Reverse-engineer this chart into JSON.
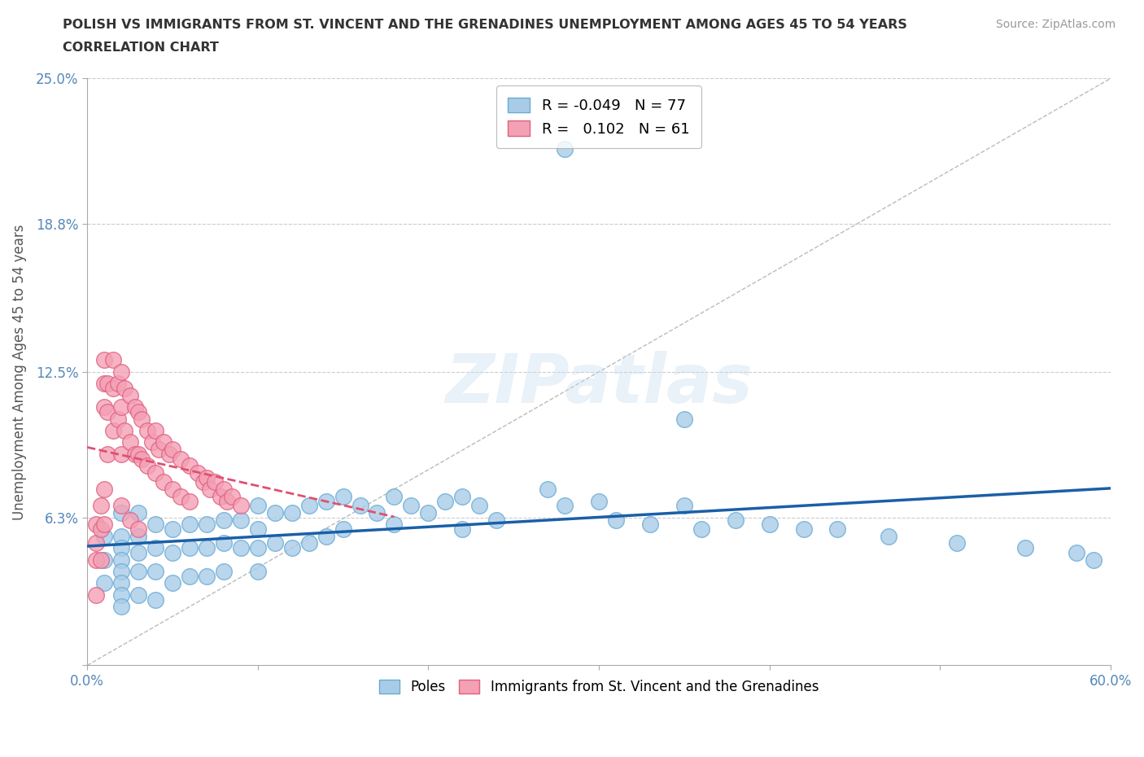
{
  "title_line1": "POLISH VS IMMIGRANTS FROM ST. VINCENT AND THE GRENADINES UNEMPLOYMENT AMONG AGES 45 TO 54 YEARS",
  "title_line2": "CORRELATION CHART",
  "source_text": "Source: ZipAtlas.com",
  "ylabel": "Unemployment Among Ages 45 to 54 years",
  "xlim": [
    0.0,
    0.6
  ],
  "ylim": [
    0.0,
    0.25
  ],
  "background_color": "#ffffff",
  "watermark_text": "ZIPatlas",
  "poles_color": "#a8cce8",
  "poles_edge_color": "#6aaad4",
  "svg_color": "#f4a0b5",
  "svg_edge_color": "#e06080",
  "poles_R": -0.049,
  "poles_N": 77,
  "svg_R": 0.102,
  "svg_N": 61,
  "legend_label_poles": "Poles",
  "legend_label_svg": "Immigrants from St. Vincent and the Grenadines",
  "ref_line_color": "#bbbbbb",
  "poles_trend_color": "#1a5fa8",
  "svg_trend_color": "#e05070",
  "grid_color": "#cccccc",
  "poles_x": [
    0.01,
    0.01,
    0.01,
    0.02,
    0.02,
    0.02,
    0.02,
    0.02,
    0.02,
    0.02,
    0.02,
    0.03,
    0.03,
    0.03,
    0.03,
    0.03,
    0.04,
    0.04,
    0.04,
    0.04,
    0.05,
    0.05,
    0.05,
    0.06,
    0.06,
    0.06,
    0.07,
    0.07,
    0.07,
    0.08,
    0.08,
    0.08,
    0.09,
    0.09,
    0.1,
    0.1,
    0.1,
    0.1,
    0.11,
    0.11,
    0.12,
    0.12,
    0.13,
    0.13,
    0.14,
    0.14,
    0.15,
    0.15,
    0.16,
    0.17,
    0.18,
    0.18,
    0.19,
    0.2,
    0.21,
    0.22,
    0.22,
    0.23,
    0.24,
    0.27,
    0.28,
    0.3,
    0.31,
    0.33,
    0.35,
    0.36,
    0.38,
    0.4,
    0.42,
    0.44,
    0.47,
    0.51,
    0.55,
    0.58,
    0.59,
    0.28,
    0.35
  ],
  "poles_y": [
    0.055,
    0.045,
    0.035,
    0.065,
    0.055,
    0.05,
    0.045,
    0.04,
    0.035,
    0.03,
    0.025,
    0.065,
    0.055,
    0.048,
    0.04,
    0.03,
    0.06,
    0.05,
    0.04,
    0.028,
    0.058,
    0.048,
    0.035,
    0.06,
    0.05,
    0.038,
    0.06,
    0.05,
    0.038,
    0.062,
    0.052,
    0.04,
    0.062,
    0.05,
    0.068,
    0.058,
    0.05,
    0.04,
    0.065,
    0.052,
    0.065,
    0.05,
    0.068,
    0.052,
    0.07,
    0.055,
    0.072,
    0.058,
    0.068,
    0.065,
    0.072,
    0.06,
    0.068,
    0.065,
    0.07,
    0.072,
    0.058,
    0.068,
    0.062,
    0.075,
    0.068,
    0.07,
    0.062,
    0.06,
    0.068,
    0.058,
    0.062,
    0.06,
    0.058,
    0.058,
    0.055,
    0.052,
    0.05,
    0.048,
    0.045,
    0.22,
    0.105
  ],
  "svg_x": [
    0.005,
    0.005,
    0.005,
    0.005,
    0.008,
    0.008,
    0.008,
    0.01,
    0.01,
    0.01,
    0.01,
    0.01,
    0.012,
    0.012,
    0.012,
    0.015,
    0.015,
    0.015,
    0.018,
    0.018,
    0.02,
    0.02,
    0.02,
    0.022,
    0.022,
    0.025,
    0.025,
    0.028,
    0.028,
    0.03,
    0.03,
    0.032,
    0.032,
    0.035,
    0.035,
    0.038,
    0.04,
    0.04,
    0.042,
    0.045,
    0.045,
    0.048,
    0.05,
    0.05,
    0.055,
    0.055,
    0.06,
    0.06,
    0.065,
    0.068,
    0.07,
    0.072,
    0.075,
    0.078,
    0.08,
    0.082,
    0.085,
    0.09,
    0.02,
    0.025,
    0.03
  ],
  "svg_y": [
    0.06,
    0.052,
    0.045,
    0.03,
    0.068,
    0.058,
    0.045,
    0.13,
    0.12,
    0.11,
    0.075,
    0.06,
    0.12,
    0.108,
    0.09,
    0.13,
    0.118,
    0.1,
    0.12,
    0.105,
    0.125,
    0.11,
    0.09,
    0.118,
    0.1,
    0.115,
    0.095,
    0.11,
    0.09,
    0.108,
    0.09,
    0.105,
    0.088,
    0.1,
    0.085,
    0.095,
    0.1,
    0.082,
    0.092,
    0.095,
    0.078,
    0.09,
    0.092,
    0.075,
    0.088,
    0.072,
    0.085,
    0.07,
    0.082,
    0.078,
    0.08,
    0.075,
    0.078,
    0.072,
    0.075,
    0.07,
    0.072,
    0.068,
    0.068,
    0.062,
    0.058
  ]
}
